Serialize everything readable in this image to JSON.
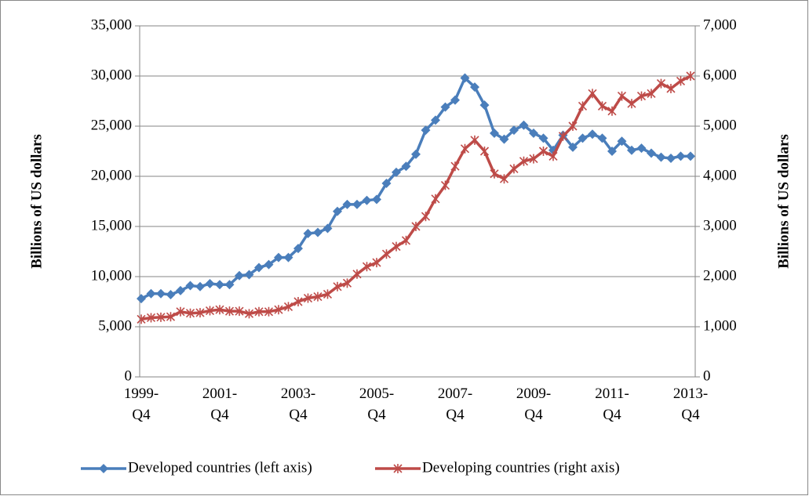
{
  "chart_data": {
    "type": "line",
    "y_label": "Billions of US dollars",
    "y2_label": "Billions of US dollars",
    "categories": [
      "1999-Q4",
      null,
      null,
      null,
      null,
      null,
      null,
      null,
      "2001-Q4",
      null,
      null,
      null,
      null,
      null,
      null,
      null,
      "2003-Q4",
      null,
      null,
      null,
      null,
      null,
      null,
      null,
      "2005-Q4",
      null,
      null,
      null,
      null,
      null,
      null,
      null,
      "2007-Q4",
      null,
      null,
      null,
      null,
      null,
      null,
      null,
      "2009-Q4",
      null,
      null,
      null,
      null,
      null,
      null,
      null,
      "2011-Q4",
      null,
      null,
      null,
      null,
      null,
      null,
      null,
      "2013-Q4"
    ],
    "series": [
      {
        "name": "Developed countries (left axis)",
        "color": "#4a7ebb",
        "marker": "diamond",
        "axis": "y",
        "values": [
          7800,
          8300,
          8300,
          8200,
          8600,
          9100,
          9000,
          9300,
          9200,
          9200,
          10100,
          10200,
          10900,
          11200,
          11900,
          11900,
          12800,
          14300,
          14400,
          14800,
          16500,
          17200,
          17200,
          17600,
          17700,
          19300,
          20400,
          21000,
          22200,
          24600,
          25600,
          26900,
          27600,
          29800,
          28900,
          27100,
          24300,
          23700,
          24600,
          25100,
          24300,
          23800,
          22600,
          24100,
          22900,
          23800,
          24200,
          23800,
          22500,
          23500,
          22600,
          22800,
          22300,
          21900,
          21800,
          22000,
          22000
        ]
      },
      {
        "name": "Developing countries (right axis)",
        "color": "#be4b48",
        "marker": "star",
        "axis": "y2",
        "values": [
          1150,
          1180,
          1190,
          1200,
          1300,
          1270,
          1280,
          1320,
          1340,
          1310,
          1310,
          1260,
          1300,
          1300,
          1340,
          1400,
          1500,
          1570,
          1600,
          1650,
          1800,
          1870,
          2050,
          2200,
          2280,
          2450,
          2600,
          2720,
          3000,
          3200,
          3550,
          3820,
          4200,
          4550,
          4720,
          4500,
          4050,
          3950,
          4150,
          4300,
          4350,
          4500,
          4400,
          4800,
          5000,
          5400,
          5650,
          5400,
          5300,
          5600,
          5450,
          5600,
          5650,
          5850,
          5750,
          5900,
          6000
        ]
      }
    ],
    "ylim": [
      0,
      35000
    ],
    "yticks": [
      0,
      {
        "value": 5000,
        "label": "5,000"
      },
      {
        "value": 10000,
        "label": "10,000"
      },
      {
        "value": 15000,
        "label": "15,000"
      },
      {
        "value": 20000,
        "label": "20,000"
      },
      {
        "value": 25000,
        "label": "25,000"
      },
      {
        "value": 30000,
        "label": "30,000"
      },
      {
        "value": 35000,
        "label": "35,000"
      }
    ],
    "y2lim": [
      0,
      7000
    ],
    "y2ticks": [
      0,
      {
        "value": 1000,
        "label": "1,000"
      },
      {
        "value": 2000,
        "label": "2,000"
      },
      {
        "value": 3000,
        "label": "3,000"
      },
      {
        "value": 4000,
        "label": "4,000"
      },
      {
        "value": 5000,
        "label": "5,000"
      },
      {
        "value": 6000,
        "label": "6,000"
      },
      {
        "value": 7000,
        "label": "7,000"
      }
    ],
    "grid": true,
    "legend": "bottom"
  }
}
